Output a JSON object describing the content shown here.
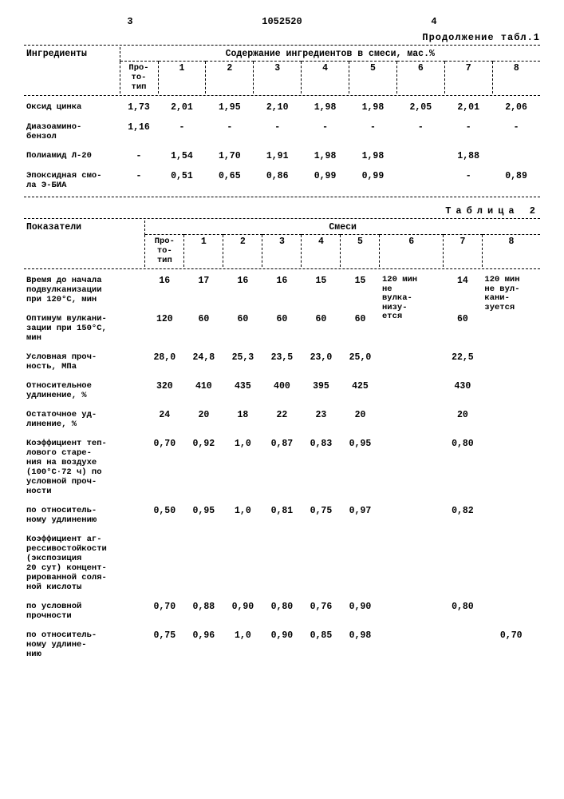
{
  "header": {
    "leftPage": "3",
    "docId": "1052520",
    "rightPage": "4",
    "continuation": "Продолжение табл.1"
  },
  "table1": {
    "colLabel": "Ингредиенты",
    "groupHeader": "Содержание ингредиентов в смеси, мас.%",
    "proto": "Про-\nто-\nтип",
    "cols": [
      "1",
      "2",
      "3",
      "4",
      "5",
      "6",
      "7",
      "8"
    ],
    "rows": [
      {
        "label": "Оксид цинка",
        "proto": "1,73",
        "v": [
          "2,01",
          "1,95",
          "2,10",
          "1,98",
          "1,98",
          "2,05",
          "2,01",
          "2,06"
        ]
      },
      {
        "label": "Диазоамино-\nбензол",
        "proto": "1,16",
        "v": [
          "-",
          "-",
          "-",
          "-",
          "-",
          "-",
          "-",
          "-"
        ]
      },
      {
        "label": "Полиамид Л-20",
        "proto": "-",
        "v": [
          "1,54",
          "1,70",
          "1,91",
          "1,98",
          "1,98",
          "",
          "1,88",
          ""
        ]
      },
      {
        "label": "Эпоксидная смо-\nла Э-БИА",
        "proto": "-",
        "v": [
          "0,51",
          "0,65",
          "0,86",
          "0,99",
          "0,99",
          "",
          "-",
          "0,89"
        ]
      }
    ]
  },
  "table2": {
    "title": "Таблица 2",
    "colLabel": "Показатели",
    "groupHeader": "Смеси",
    "proto": "Про-\nто-\nтип",
    "cols": [
      "1",
      "2",
      "3",
      "4",
      "5",
      "6",
      "7",
      "8"
    ],
    "note6": "120 мин\nне\nвулка-\nнизу-\nется",
    "note8": "120 мин\nне вул-\nкани-\nзуется",
    "rows": [
      {
        "label": "Время до начала\nподвулканизации\nпри 120°С, мин",
        "proto": "16",
        "v": [
          "17",
          "16",
          "16",
          "15",
          "15",
          "",
          "14",
          ""
        ]
      },
      {
        "label": "Оптимум вулкани-\nзации при 150°С,\nмин",
        "proto": "120",
        "v": [
          "60",
          "60",
          "60",
          "60",
          "60",
          "",
          "60",
          ""
        ]
      },
      {
        "label": "Условная проч-\nность, МПа",
        "proto": "28,0",
        "v": [
          "24,8",
          "25,3",
          "23,5",
          "23,0",
          "25,0",
          "",
          "22,5",
          ""
        ]
      },
      {
        "label": "Относительное\nудлинение, %",
        "proto": "320",
        "v": [
          "410",
          "435",
          "400",
          "395",
          "425",
          "",
          "430",
          ""
        ]
      },
      {
        "label": "Остаточное уд-\nлинение, %",
        "proto": "24",
        "v": [
          "20",
          "18",
          "22",
          "23",
          "20",
          "",
          "20",
          ""
        ]
      },
      {
        "label": "Коэффициент теп-\nлового старе-\nния на воздухе\n(100°С·72 ч) по\nусловной проч-\nности",
        "proto": "0,70",
        "v": [
          "0,92",
          "1,0",
          "0,87",
          "0,83",
          "0,95",
          "",
          "0,80",
          ""
        ]
      },
      {
        "label": "по относитель-\nному удлинению",
        "proto": "0,50",
        "v": [
          "0,95",
          "1,0",
          "0,81",
          "0,75",
          "0,97",
          "",
          "0,82",
          ""
        ]
      },
      {
        "label": "Коэффициент аг-\nрессивостойкости\n(экспозиция\n20 сут) концент-\nрированной соля-\nной кислоты",
        "proto": "",
        "v": [
          "",
          "",
          "",
          "",
          "",
          "",
          "",
          ""
        ]
      },
      {
        "label": "  по условной\n  прочности",
        "proto": "0,70",
        "v": [
          "0,88",
          "0,90",
          "0,80",
          "0,76",
          "0,90",
          "",
          "0,80",
          ""
        ]
      },
      {
        "label": "  по относитель-\n  ному удлине-\n  нию",
        "proto": "0,75",
        "v": [
          "0,96",
          "1,0",
          "0,90",
          "0,85",
          "0,98",
          "",
          "",
          "0,70"
        ]
      }
    ]
  }
}
